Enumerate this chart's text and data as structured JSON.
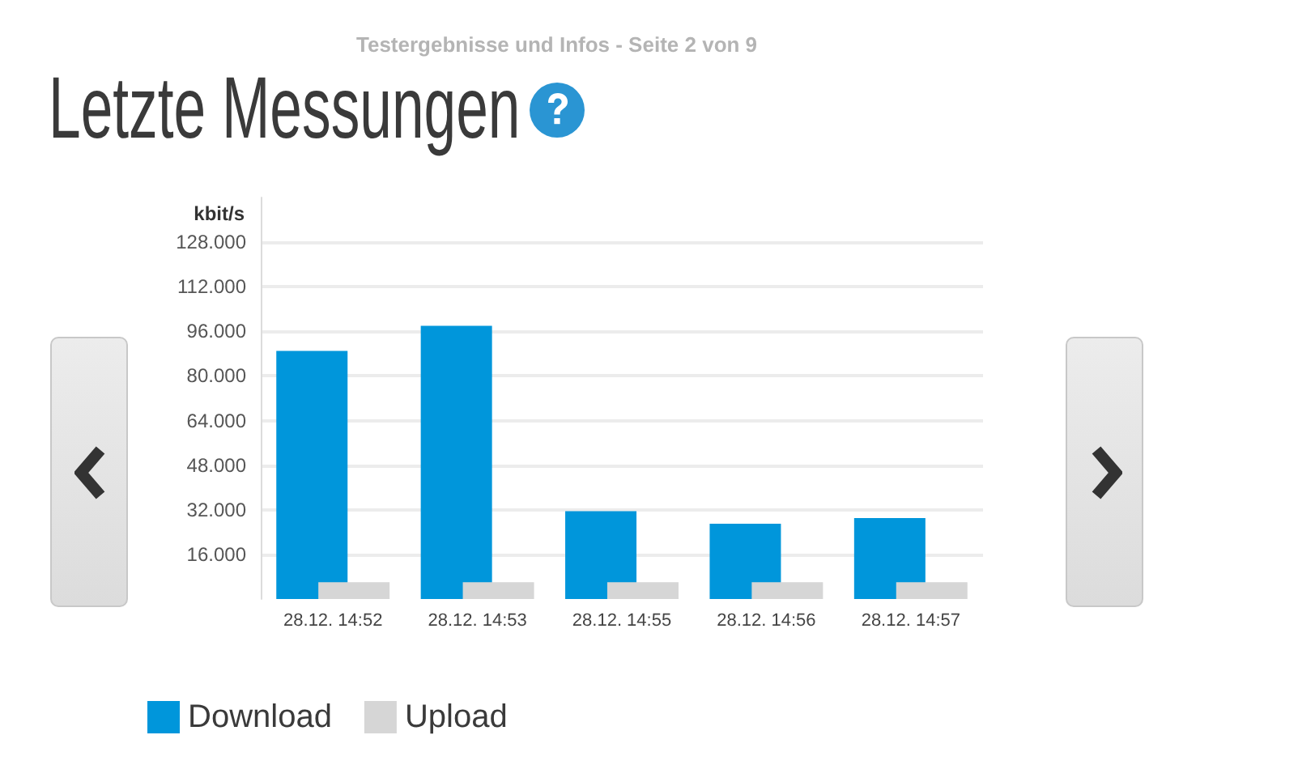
{
  "chart_data": {
    "type": "bar",
    "title": "Letzte Messungen",
    "subtitle": "Testergebnisse und Infos - Seite 2 von 9",
    "ylabel": "kbit/s",
    "categories": [
      "28.12. 14:52",
      "28.12. 14:53",
      "28.12. 14:55",
      "28.12. 14:56",
      "28.12. 14:57"
    ],
    "series": [
      {
        "name": "Download",
        "color": "#0096db",
        "values": [
          89000,
          98000,
          31500,
          27000,
          29000
        ]
      },
      {
        "name": "Upload",
        "color": "#d6d6d6",
        "values": [
          6000,
          6000,
          6000,
          6000,
          6000
        ]
      }
    ],
    "ylim": [
      0,
      144000
    ],
    "yticks": [
      {
        "value": 16000,
        "label": "16.000"
      },
      {
        "value": 32000,
        "label": "32.000"
      },
      {
        "value": 48000,
        "label": "48.000"
      },
      {
        "value": 64000,
        "label": "64.000"
      },
      {
        "value": 80000,
        "label": "80.000"
      },
      {
        "value": 96000,
        "label": "96.000"
      },
      {
        "value": 112000,
        "label": "112.000"
      },
      {
        "value": 128000,
        "label": "128.000"
      }
    ],
    "grid": "y",
    "legend": "bottom left"
  }
}
